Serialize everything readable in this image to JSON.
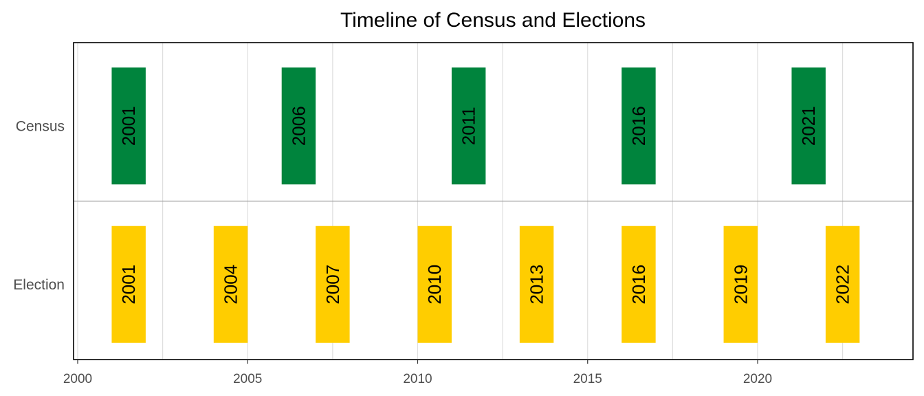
{
  "chart_data": {
    "type": "bar",
    "title": "Timeline of Census and Elections",
    "xlabel": "",
    "ylabel": "",
    "xlim": [
      2000,
      2024.5
    ],
    "x_ticks": [
      2000,
      2005,
      2010,
      2015,
      2020
    ],
    "x_tick_labels": [
      "2000",
      "2005",
      "2010",
      "2015",
      "2020"
    ],
    "categories": [
      "Census",
      "Election"
    ],
    "series": [
      {
        "category": "Census",
        "color": "#00843d",
        "bars": [
          {
            "start": 2001,
            "end": 2002,
            "label": "2001"
          },
          {
            "start": 2006,
            "end": 2007,
            "label": "2006"
          },
          {
            "start": 2011,
            "end": 2012,
            "label": "2011"
          },
          {
            "start": 2016,
            "end": 2017,
            "label": "2016"
          },
          {
            "start": 2021,
            "end": 2022,
            "label": "2021"
          }
        ]
      },
      {
        "category": "Election",
        "color": "#ffcd00",
        "bars": [
          {
            "start": 2001,
            "end": 2002,
            "label": "2001"
          },
          {
            "start": 2004,
            "end": 2005,
            "label": "2004"
          },
          {
            "start": 2007,
            "end": 2008,
            "label": "2007"
          },
          {
            "start": 2010,
            "end": 2011,
            "label": "2010"
          },
          {
            "start": 2013,
            "end": 2014,
            "label": "2013"
          },
          {
            "start": 2016,
            "end": 2017,
            "label": "2016"
          },
          {
            "start": 2019,
            "end": 2020,
            "label": "2019"
          },
          {
            "start": 2022,
            "end": 2023,
            "label": "2022"
          }
        ]
      }
    ],
    "grid": true,
    "legend": "none"
  }
}
